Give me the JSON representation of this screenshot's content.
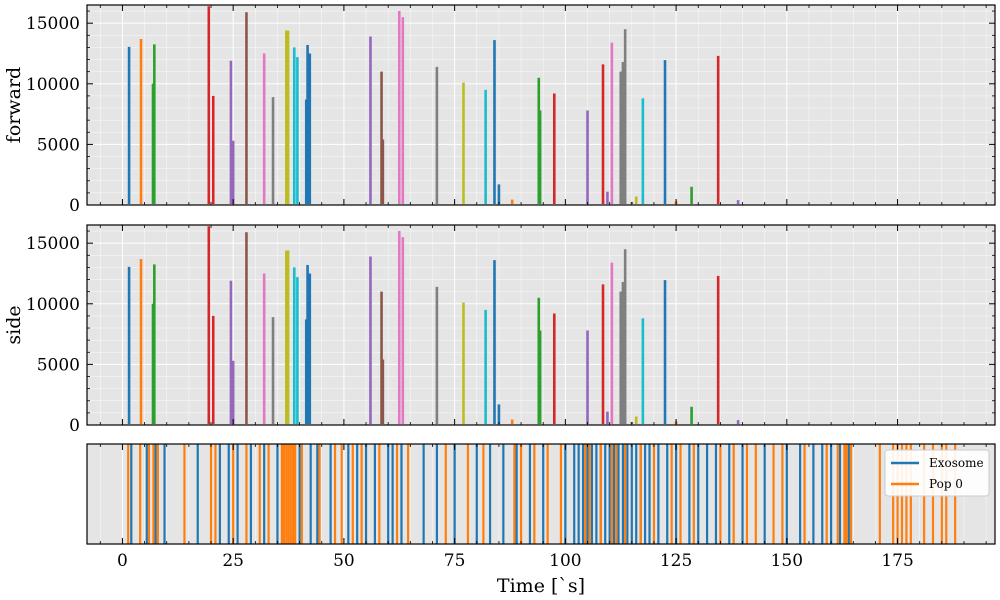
{
  "chart_data": {
    "type": "bar",
    "xlabel": "Time [`s]",
    "xlim": [
      -8,
      197
    ],
    "xticks": [
      0,
      25,
      50,
      75,
      100,
      125,
      150,
      175
    ],
    "grid": true,
    "colors": [
      "#1f77b4",
      "#ff7f0e",
      "#2ca02c",
      "#d62728",
      "#9467bd",
      "#8c564b",
      "#e377c2",
      "#7f7f7f",
      "#bcbd22",
      "#17becf"
    ],
    "panels": [
      {
        "ylabel": "forward",
        "ylim": [
          0,
          16500
        ],
        "yticks": [
          0,
          5000,
          10000,
          15000
        ],
        "peaks": [
          {
            "x": 1.5,
            "y": 13050,
            "color": 0
          },
          {
            "x": 4.2,
            "y": 13700,
            "color": 1
          },
          {
            "x": 7.2,
            "y": 13250,
            "color": 2
          },
          {
            "x": 6.9,
            "y": 10000,
            "color": 2
          },
          {
            "x": 19.5,
            "y": 16400,
            "color": 3
          },
          {
            "x": 20.5,
            "y": 9000,
            "color": 3
          },
          {
            "x": 24.5,
            "y": 11900,
            "color": 4
          },
          {
            "x": 25.0,
            "y": 5300,
            "color": 4
          },
          {
            "x": 28.0,
            "y": 15900,
            "color": 5
          },
          {
            "x": 32.0,
            "y": 12500,
            "color": 6
          },
          {
            "x": 34.0,
            "y": 8900,
            "color": 7
          },
          {
            "x": 37.0,
            "y": 14400,
            "color": 8
          },
          {
            "x": 37.4,
            "y": 14400,
            "color": 8
          },
          {
            "x": 38.8,
            "y": 13000,
            "color": 9
          },
          {
            "x": 39.5,
            "y": 12200,
            "color": 9
          },
          {
            "x": 41.8,
            "y": 13200,
            "color": 0
          },
          {
            "x": 42.3,
            "y": 12500,
            "color": 0
          },
          {
            "x": 41.5,
            "y": 8700,
            "color": 0
          },
          {
            "x": 56.0,
            "y": 13900,
            "color": 4
          },
          {
            "x": 58.5,
            "y": 11000,
            "color": 5
          },
          {
            "x": 58.8,
            "y": 5400,
            "color": 5
          },
          {
            "x": 62.5,
            "y": 16000,
            "color": 6
          },
          {
            "x": 63.3,
            "y": 15500,
            "color": 6
          },
          {
            "x": 71.0,
            "y": 11400,
            "color": 7
          },
          {
            "x": 77.0,
            "y": 10100,
            "color": 8
          },
          {
            "x": 82.0,
            "y": 9500,
            "color": 9
          },
          {
            "x": 84.0,
            "y": 13600,
            "color": 0
          },
          {
            "x": 85.0,
            "y": 1700,
            "color": 0
          },
          {
            "x": 88.0,
            "y": 450,
            "color": 1
          },
          {
            "x": 94.0,
            "y": 10500,
            "color": 2
          },
          {
            "x": 94.3,
            "y": 7800,
            "color": 2
          },
          {
            "x": 97.5,
            "y": 9200,
            "color": 3
          },
          {
            "x": 105.0,
            "y": 7800,
            "color": 4
          },
          {
            "x": 108.5,
            "y": 11600,
            "color": 3
          },
          {
            "x": 109.5,
            "y": 1100,
            "color": 4
          },
          {
            "x": 110.5,
            "y": 13400,
            "color": 6
          },
          {
            "x": 112.5,
            "y": 11000,
            "color": 7
          },
          {
            "x": 113.0,
            "y": 11800,
            "color": 7
          },
          {
            "x": 113.5,
            "y": 14500,
            "color": 7
          },
          {
            "x": 115.0,
            "y": 250,
            "color": 7
          },
          {
            "x": 116.0,
            "y": 700,
            "color": 8
          },
          {
            "x": 117.5,
            "y": 8800,
            "color": 9
          },
          {
            "x": 122.5,
            "y": 11950,
            "color": 0
          },
          {
            "x": 125.0,
            "y": 300,
            "color": 1
          },
          {
            "x": 128.5,
            "y": 1500,
            "color": 2
          },
          {
            "x": 134.5,
            "y": 12300,
            "color": 3
          },
          {
            "x": 139.0,
            "y": 400,
            "color": 4
          }
        ]
      },
      {
        "ylabel": "side",
        "ylim": [
          0,
          16500
        ],
        "yticks": [
          0,
          5000,
          10000,
          15000
        ],
        "same_as_panel": 0
      }
    ],
    "event_panel": {
      "legend_position": "top-right",
      "series": [
        {
          "name": "Exosome",
          "color": "#1f77b4",
          "x": [
            2,
            5.5,
            7.5,
            9.5,
            17,
            22,
            24,
            26,
            29,
            32,
            35,
            40,
            42.5,
            44,
            47,
            51,
            53,
            55,
            57,
            60,
            61,
            63,
            68,
            71,
            75,
            80,
            83,
            86,
            89,
            92,
            95,
            100,
            102,
            103,
            104,
            105,
            106,
            107,
            108,
            109,
            110,
            111,
            112,
            113,
            114,
            115,
            116,
            117,
            118,
            119,
            121,
            123,
            125,
            128,
            130,
            132,
            134,
            137,
            140,
            145,
            150,
            153,
            156,
            158,
            160,
            162,
            164
          ]
        },
        {
          "name": "Pop 0",
          "color": "#ff7f0e",
          "x": [
            1.3,
            4,
            6,
            7,
            8,
            14,
            20,
            21,
            25,
            28,
            31,
            33,
            36,
            36.5,
            37,
            37.5,
            38,
            38.5,
            39,
            40.5,
            44.5,
            48,
            49.5,
            52,
            54,
            58,
            62,
            64.5,
            73,
            78,
            81.5,
            88.5,
            90,
            93,
            96,
            99,
            104.5,
            105.5,
            108,
            110.5,
            111.5,
            113.5,
            117,
            120,
            124,
            126,
            129,
            135,
            138,
            141,
            143,
            147,
            149,
            154,
            159,
            161.5,
            163,
            163.5,
            164.5,
            171,
            174,
            175,
            176,
            177,
            178,
            181,
            183,
            185,
            186,
            188
          ]
        }
      ]
    }
  }
}
